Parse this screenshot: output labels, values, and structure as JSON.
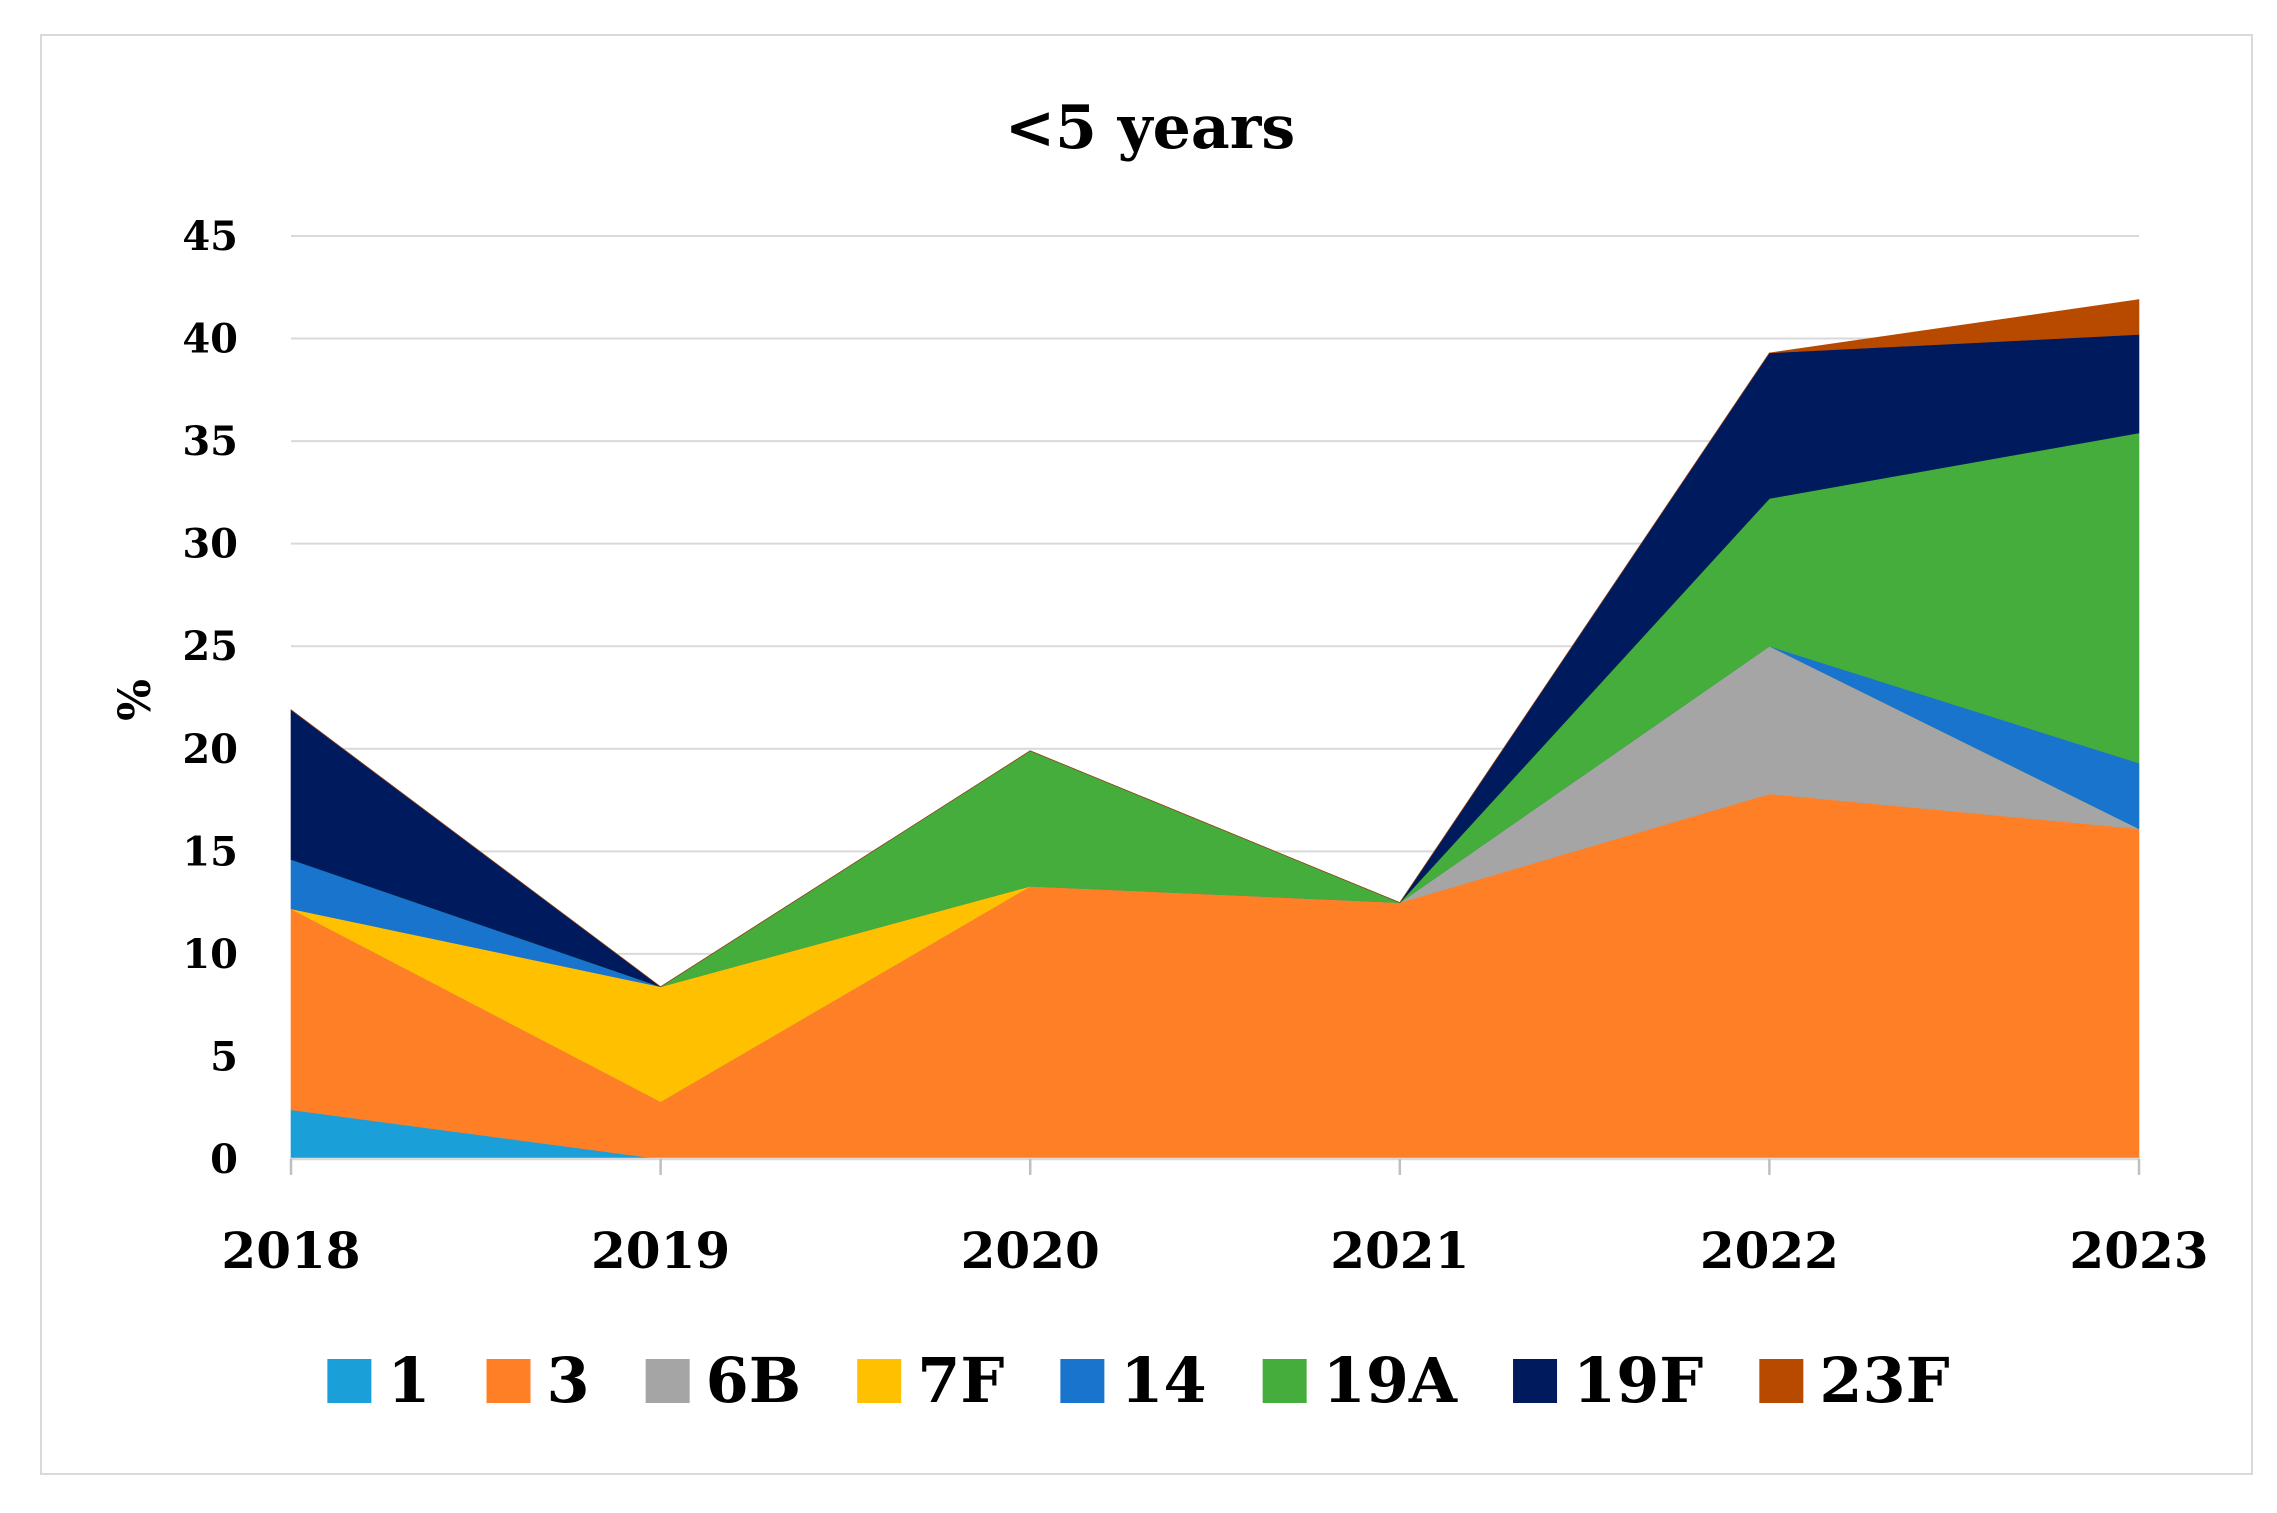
{
  "chart_data": {
    "type": "area",
    "stacked": true,
    "title": "<5 years",
    "xlabel": "",
    "ylabel": "%",
    "ylim": [
      0,
      45
    ],
    "yticks": [
      0,
      5,
      10,
      15,
      20,
      25,
      30,
      35,
      40,
      45
    ],
    "grid": true,
    "legend": "bottom",
    "categories": [
      "2018",
      "2019",
      "2020",
      "2021",
      "2022",
      "2023"
    ],
    "series": [
      {
        "name": "1",
        "color": "#1a9fd9",
        "values": [
          2.4,
          0,
          0,
          0,
          0,
          0
        ]
      },
      {
        "name": "3",
        "color": "#ff7f27",
        "values": [
          9.8,
          2.8,
          13.3,
          12.5,
          17.8,
          16.1
        ]
      },
      {
        "name": "6B",
        "color": "#a5a5a5",
        "values": [
          0,
          0,
          0,
          0,
          7.2,
          0
        ]
      },
      {
        "name": "7F",
        "color": "#ffc000",
        "values": [
          0,
          5.6,
          0,
          0,
          0,
          0
        ]
      },
      {
        "name": "14",
        "color": "#1874cd",
        "values": [
          2.4,
          0,
          0,
          0,
          0,
          3.2
        ]
      },
      {
        "name": "19A",
        "color": "#45ad3b",
        "values": [
          0,
          0,
          6.6,
          0,
          7.2,
          16.1
        ]
      },
      {
        "name": "19F",
        "color": "#001a5e",
        "values": [
          7.3,
          0,
          0,
          0,
          7.1,
          4.8
        ]
      },
      {
        "name": "23F",
        "color": "#b84a00",
        "values": [
          0,
          0,
          0,
          0,
          0,
          1.7
        ]
      }
    ]
  }
}
